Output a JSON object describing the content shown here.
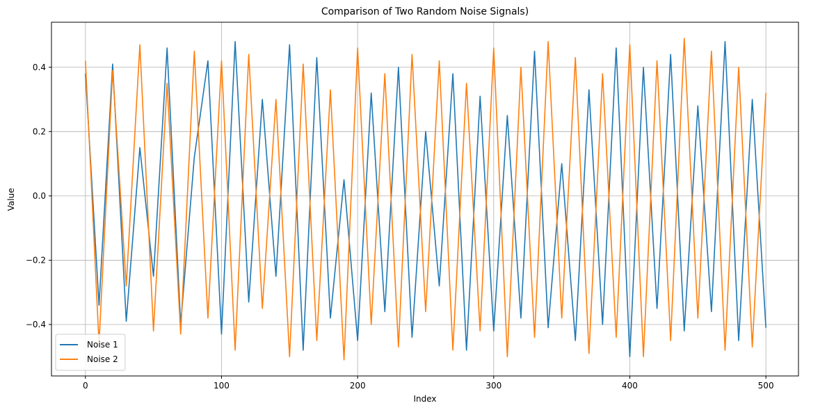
{
  "chart_data": {
    "type": "line",
    "title": "Comparison of Two Random Noise Signals)",
    "xlabel": "Index",
    "ylabel": "Value",
    "xlim": [
      -24.95,
      523.95
    ],
    "ylim": [
      -0.56,
      0.54
    ],
    "x_ticks": [
      0,
      100,
      200,
      300,
      400,
      500
    ],
    "x_tick_labels": [
      "0",
      "100",
      "200",
      "300",
      "400",
      "500"
    ],
    "y_ticks": [
      -0.4,
      -0.2,
      0.0,
      0.2,
      0.4
    ],
    "y_tick_labels": [
      "−0.4",
      "−0.2",
      "0.0",
      "0.2",
      "0.4"
    ],
    "grid": true,
    "legend_position": "lower-left",
    "x_start": 0,
    "x_step": 10,
    "series": [
      {
        "name": "Noise 1",
        "color": "#1f77b4",
        "values": [
          0.38,
          -0.34,
          0.41,
          -0.39,
          0.15,
          -0.25,
          0.46,
          -0.4,
          0.12,
          0.42,
          -0.43,
          0.48,
          -0.33,
          0.3,
          -0.25,
          0.47,
          -0.48,
          0.43,
          -0.38,
          0.05,
          -0.45,
          0.32,
          -0.36,
          0.4,
          -0.44,
          0.2,
          -0.28,
          0.38,
          -0.48,
          0.31,
          -0.42,
          0.25,
          -0.38,
          0.45,
          -0.41,
          0.1,
          -0.45,
          0.33,
          -0.4,
          0.46,
          -0.5,
          0.4,
          -0.35,
          0.44,
          -0.42,
          0.28,
          -0.36,
          0.48,
          -0.45,
          0.3,
          -0.41
        ]
      },
      {
        "name": "Noise 2",
        "color": "#ff7f0e",
        "values": [
          0.42,
          -0.46,
          0.39,
          -0.28,
          0.47,
          -0.42,
          0.35,
          -0.43,
          0.45,
          -0.38,
          0.42,
          -0.48,
          0.44,
          -0.35,
          0.3,
          -0.5,
          0.41,
          -0.45,
          0.33,
          -0.51,
          0.46,
          -0.4,
          0.38,
          -0.47,
          0.44,
          -0.36,
          0.42,
          -0.48,
          0.35,
          -0.42,
          0.46,
          -0.5,
          0.4,
          -0.44,
          0.48,
          -0.38,
          0.43,
          -0.49,
          0.38,
          -0.44,
          0.47,
          -0.5,
          0.42,
          -0.45,
          0.49,
          -0.38,
          0.45,
          -0.48,
          0.4,
          -0.47,
          0.32
        ]
      }
    ]
  }
}
